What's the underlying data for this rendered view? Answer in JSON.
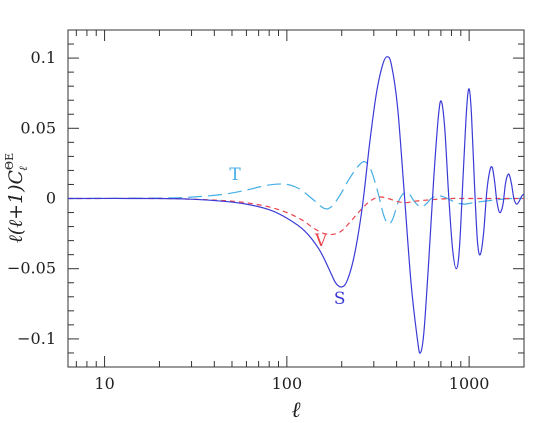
{
  "chart_data": {
    "type": "line",
    "xscale": "log",
    "xlim": [
      6.3,
      2000
    ],
    "ylim": [
      -0.12,
      0.12
    ],
    "grid": false,
    "xlabel": "ℓ",
    "ylabel": "ℓ(ℓ+1)C",
    "ylabel_super": "ΘE",
    "ylabel_sub": "ℓ",
    "x_tick_labels": [
      {
        "value": 10,
        "label": "10"
      },
      {
        "value": 100,
        "label": "100"
      },
      {
        "value": 1000,
        "label": "1000"
      }
    ],
    "y_tick_labels": [
      {
        "value": 0.1,
        "label": "0.1"
      },
      {
        "value": 0.05,
        "label": "0.05"
      },
      {
        "value": 0,
        "label": "0"
      },
      {
        "value": -0.05,
        "label": "−0.05"
      },
      {
        "value": -0.1,
        "label": "−0.1"
      }
    ],
    "series": [
      {
        "name": "S",
        "color": "#3a3ad6",
        "style": "solid",
        "label_at": [
          195,
          -0.075
        ],
        "points": [
          [
            6.3,
            0
          ],
          [
            20,
            0
          ],
          [
            30,
            -0.0005
          ],
          [
            45,
            -0.002
          ],
          [
            60,
            -0.004
          ],
          [
            80,
            -0.008
          ],
          [
            100,
            -0.014
          ],
          [
            125,
            -0.023
          ],
          [
            150,
            -0.036
          ],
          [
            170,
            -0.05
          ],
          [
            185,
            -0.06
          ],
          [
            200,
            -0.063
          ],
          [
            215,
            -0.058
          ],
          [
            235,
            -0.04
          ],
          [
            260,
            -0.005
          ],
          [
            285,
            0.04
          ],
          [
            310,
            0.075
          ],
          [
            335,
            0.095
          ],
          [
            355,
            0.101
          ],
          [
            375,
            0.095
          ],
          [
            405,
            0.065
          ],
          [
            440,
            0.005
          ],
          [
            480,
            -0.06
          ],
          [
            520,
            -0.1
          ],
          [
            540,
            -0.11
          ],
          [
            565,
            -0.095
          ],
          [
            600,
            -0.045
          ],
          [
            640,
            0.015
          ],
          [
            680,
            0.06
          ],
          [
            705,
            0.069
          ],
          [
            735,
            0.05
          ],
          [
            770,
            0.005
          ],
          [
            810,
            -0.035
          ],
          [
            850,
            -0.05
          ],
          [
            885,
            -0.035
          ],
          [
            930,
            0.02
          ],
          [
            970,
            0.065
          ],
          [
            1000,
            0.078
          ],
          [
            1030,
            0.06
          ],
          [
            1070,
            0.01
          ],
          [
            1110,
            -0.03
          ],
          [
            1150,
            -0.04
          ],
          [
            1200,
            -0.025
          ],
          [
            1250,
            0.005
          ],
          [
            1300,
            0.02
          ],
          [
            1340,
            0.022
          ],
          [
            1380,
            0.012
          ],
          [
            1420,
            -0.002
          ],
          [
            1470,
            -0.01
          ],
          [
            1530,
            -0.005
          ],
          [
            1580,
            0.01
          ],
          [
            1620,
            0.016
          ],
          [
            1660,
            0.017
          ],
          [
            1710,
            0.01
          ],
          [
            1760,
            0.0
          ],
          [
            1820,
            -0.004
          ],
          [
            1880,
            -0.002
          ],
          [
            1950,
            0.002
          ],
          [
            2000,
            0.003
          ]
        ]
      },
      {
        "name": "T",
        "color": "#44aee6",
        "style": "longdash",
        "label_at": [
          52,
          0.013
        ],
        "points": [
          [
            6.3,
            0
          ],
          [
            20,
            0.0003
          ],
          [
            30,
            0.001
          ],
          [
            45,
            0.003
          ],
          [
            60,
            0.006
          ],
          [
            75,
            0.009
          ],
          [
            90,
            0.0103
          ],
          [
            105,
            0.0095
          ],
          [
            120,
            0.006
          ],
          [
            140,
            -0.001
          ],
          [
            160,
            -0.007
          ],
          [
            175,
            -0.006
          ],
          [
            195,
            0.002
          ],
          [
            220,
            0.014
          ],
          [
            250,
            0.024
          ],
          [
            270,
            0.026
          ],
          [
            290,
            0.02
          ],
          [
            315,
            0.005
          ],
          [
            340,
            -0.012
          ],
          [
            360,
            -0.018
          ],
          [
            380,
            -0.015
          ],
          [
            410,
            -0.002
          ],
          [
            440,
            0.004
          ],
          [
            470,
            0.003
          ],
          [
            500,
            -0.002
          ],
          [
            540,
            -0.006
          ],
          [
            580,
            -0.004
          ],
          [
            620,
            0.0
          ],
          [
            680,
            0.002
          ],
          [
            760,
            0.0
          ],
          [
            850,
            -0.003
          ],
          [
            950,
            -0.004
          ],
          [
            1050,
            -0.003
          ],
          [
            1200,
            -0.002
          ],
          [
            1400,
            -0.001
          ],
          [
            1700,
            0.0
          ],
          [
            2000,
            0.0
          ]
        ]
      },
      {
        "name": "V",
        "color": "#e8424a",
        "style": "dash",
        "label_at": [
          154,
          -0.034
        ],
        "points": [
          [
            6.3,
            0
          ],
          [
            20,
            0
          ],
          [
            30,
            -0.0005
          ],
          [
            45,
            -0.0015
          ],
          [
            60,
            -0.003
          ],
          [
            80,
            -0.006
          ],
          [
            100,
            -0.01
          ],
          [
            120,
            -0.015
          ],
          [
            140,
            -0.021
          ],
          [
            160,
            -0.025
          ],
          [
            180,
            -0.0255
          ],
          [
            200,
            -0.023
          ],
          [
            225,
            -0.016
          ],
          [
            255,
            -0.008
          ],
          [
            285,
            -0.002
          ],
          [
            320,
            0.001
          ],
          [
            360,
            0.0
          ],
          [
            400,
            -0.002
          ],
          [
            450,
            -0.003
          ],
          [
            500,
            -0.002
          ],
          [
            600,
            -0.001
          ],
          [
            800,
            0.0
          ],
          [
            1000,
            0.0
          ],
          [
            2000,
            0.0
          ]
        ]
      }
    ]
  }
}
